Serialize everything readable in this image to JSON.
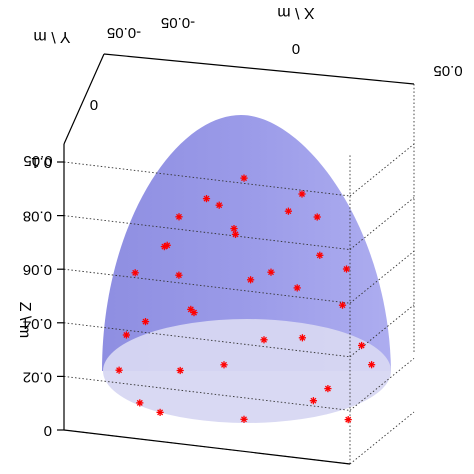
{
  "chart_data": {
    "type": "scatter",
    "title": "",
    "xlabel": "X \\ m",
    "ylabel": "Y \\ m",
    "zlabel": "Z \\ m",
    "xlim": [
      -0.05,
      0.05
    ],
    "ylim": [
      -0.05,
      0.05
    ],
    "zlim": [
      0,
      0.1
    ],
    "z_ticks": [
      "0",
      "0.02",
      "0.04",
      "0.06",
      "0.08",
      "0.1"
    ],
    "x_ticks": [
      "-0.05",
      "0",
      "0.05"
    ],
    "y_ticks": [
      "-0.05",
      "0",
      "0.05"
    ],
    "grid": true,
    "orientation": "image rotated 180 degrees",
    "surface": {
      "shape": "paraboloid",
      "color": "#8c8ce6",
      "base_color": "#d7d7f2",
      "top_z": 0.1
    },
    "marker": {
      "symbol": "*",
      "color": "#ff0000"
    },
    "series": [
      {
        "points": [
          {
            "x": 0.0,
            "y": 0.0,
            "z": 0.094
          },
          {
            "x": 0.015,
            "y": -0.005,
            "z": 0.088
          },
          {
            "x": -0.022,
            "y": 0.004,
            "z": 0.086
          },
          {
            "x": 0.005,
            "y": 0.012,
            "z": 0.083
          },
          {
            "x": 0.02,
            "y": 0.01,
            "z": 0.08
          },
          {
            "x": -0.012,
            "y": -0.012,
            "z": 0.082
          },
          {
            "x": 0.01,
            "y": -0.02,
            "z": 0.078
          },
          {
            "x": -0.03,
            "y": 0.012,
            "z": 0.076
          },
          {
            "x": 0.03,
            "y": -0.008,
            "z": 0.072
          },
          {
            "x": -0.005,
            "y": 0.025,
            "z": 0.07
          },
          {
            "x": 0.022,
            "y": 0.02,
            "z": 0.068
          },
          {
            "x": -0.02,
            "y": -0.022,
            "z": 0.066
          },
          {
            "x": 0.0,
            "y": -0.03,
            "z": 0.062
          },
          {
            "x": 0.035,
            "y": 0.012,
            "z": 0.06
          },
          {
            "x": -0.035,
            "y": -0.005,
            "z": 0.058
          },
          {
            "x": 0.012,
            "y": 0.035,
            "z": 0.055
          },
          {
            "x": -0.012,
            "y": 0.03,
            "z": 0.052
          },
          {
            "x": 0.028,
            "y": -0.028,
            "z": 0.05
          },
          {
            "x": -0.028,
            "y": 0.028,
            "z": 0.048
          },
          {
            "x": 0.04,
            "y": -0.015,
            "z": 0.045
          },
          {
            "x": -0.04,
            "y": 0.015,
            "z": 0.042
          },
          {
            "x": 0.005,
            "y": 0.04,
            "z": 0.04
          },
          {
            "x": -0.008,
            "y": -0.04,
            "z": 0.038
          },
          {
            "x": 0.033,
            "y": 0.028,
            "z": 0.035
          },
          {
            "x": -0.033,
            "y": -0.028,
            "z": 0.032
          },
          {
            "x": 0.02,
            "y": -0.04,
            "z": 0.03
          },
          {
            "x": -0.02,
            "y": 0.04,
            "z": 0.028
          },
          {
            "x": 0.043,
            "y": 0.005,
            "z": 0.025
          },
          {
            "x": -0.043,
            "y": -0.008,
            "z": 0.022
          },
          {
            "x": 0.008,
            "y": 0.046,
            "z": 0.018
          },
          {
            "x": -0.01,
            "y": -0.046,
            "z": 0.015
          },
          {
            "x": 0.038,
            "y": -0.025,
            "z": 0.012
          },
          {
            "x": -0.038,
            "y": 0.025,
            "z": 0.01
          },
          {
            "x": 0.0,
            "y": 0.0,
            "z": 0.004
          },
          {
            "x": 0.025,
            "y": 0.038,
            "z": 0.008
          },
          {
            "x": -0.025,
            "y": -0.038,
            "z": 0.006
          }
        ]
      }
    ]
  }
}
